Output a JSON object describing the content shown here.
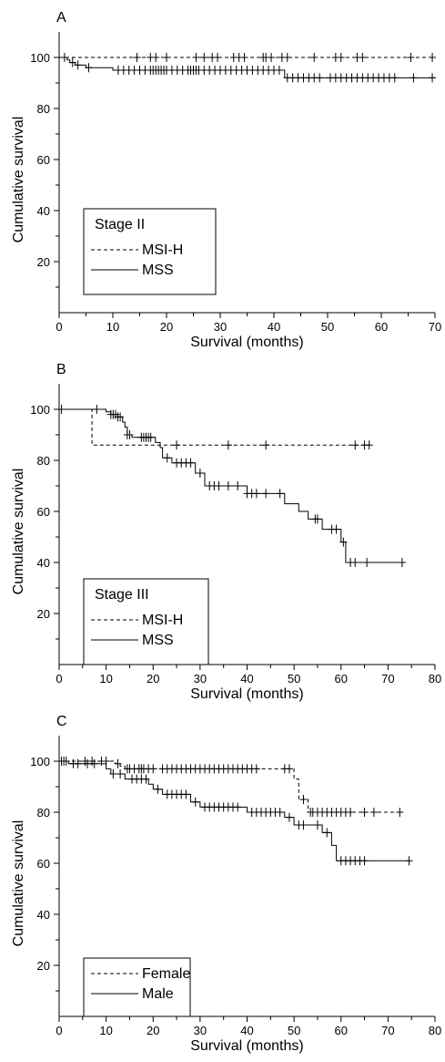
{
  "chart_data": [
    {
      "type": "line",
      "panel_label": "A",
      "xlabel": "Survival (months)",
      "ylabel": "Cumulative survival",
      "xlim": [
        0,
        70
      ],
      "ylim": [
        0,
        110
      ],
      "xticks": [
        0,
        10,
        20,
        30,
        40,
        50,
        60,
        70
      ],
      "yticks": [
        20,
        40,
        60,
        80,
        100
      ],
      "legend": {
        "title": "Stage II",
        "placement": "bottom-left"
      },
      "series": [
        {
          "name": "MSI-H",
          "style": "dashed",
          "steps": [
            [
              0,
              100
            ],
            [
              70,
              100
            ]
          ],
          "censored": [
            1,
            14.5,
            17,
            18,
            20,
            25.5,
            27,
            28.5,
            29.5,
            32.5,
            33.5,
            34.5,
            38,
            38.5,
            39.5,
            41.5,
            42.5,
            47.5,
            51.5,
            52.5,
            55.5,
            56.5,
            65.5,
            69.5
          ]
        },
        {
          "name": "MSS",
          "style": "solid",
          "steps": [
            [
              0,
              100
            ],
            [
              1.5,
              100
            ],
            [
              1.5,
              99
            ],
            [
              2,
              99
            ],
            [
              2,
              98
            ],
            [
              3,
              98
            ],
            [
              3,
              97
            ],
            [
              5,
              97
            ],
            [
              5,
              96
            ],
            [
              10,
              96
            ],
            [
              10,
              95
            ],
            [
              42,
              95
            ],
            [
              42,
              92
            ],
            [
              70,
              92
            ]
          ],
          "censored": [
            2.5,
            3.5,
            5.5,
            11,
            12,
            13,
            14,
            15,
            16,
            17,
            17.5,
            18,
            18.5,
            19,
            19.5,
            20,
            21,
            22,
            23,
            24,
            24.5,
            25,
            25.5,
            26,
            27,
            28,
            29,
            30,
            31,
            32,
            33,
            34,
            35,
            36,
            37,
            38,
            39,
            40,
            41,
            42.5,
            43.5,
            44.5,
            45.5,
            46.5,
            47.5,
            48.5,
            50.5,
            51.5,
            52.5,
            53.5,
            54.5,
            55.5,
            56.5,
            57.5,
            58.5,
            59.5,
            60.5,
            61.5,
            62.5,
            66,
            69.5
          ]
        }
      ]
    },
    {
      "type": "line",
      "panel_label": "B",
      "xlabel": "Survival (months)",
      "ylabel": "Cumulative survival",
      "xlim": [
        0,
        80
      ],
      "ylim": [
        0,
        110
      ],
      "xticks": [
        0,
        10,
        20,
        30,
        40,
        50,
        60,
        70,
        80
      ],
      "yticks": [
        20,
        40,
        60,
        80,
        100
      ],
      "legend": {
        "title": "Stage III",
        "placement": "bottom-left"
      },
      "series": [
        {
          "name": "MSI-H",
          "style": "dashed",
          "steps": [
            [
              0,
              100
            ],
            [
              7,
              100
            ],
            [
              7,
              86
            ],
            [
              66,
              86
            ]
          ],
          "censored": [
            25,
            36,
            44,
            63,
            65,
            66
          ]
        },
        {
          "name": "MSS",
          "style": "solid",
          "steps": [
            [
              0,
              100
            ],
            [
              10,
              100
            ],
            [
              10,
              99
            ],
            [
              11,
              99
            ],
            [
              11,
              98
            ],
            [
              12.5,
              98
            ],
            [
              12.5,
              97
            ],
            [
              13.5,
              97
            ],
            [
              13.5,
              95
            ],
            [
              14,
              95
            ],
            [
              14,
              93
            ],
            [
              14.5,
              93
            ],
            [
              14.5,
              90
            ],
            [
              15.5,
              90
            ],
            [
              15.5,
              89
            ],
            [
              20.5,
              89
            ],
            [
              20.5,
              87
            ],
            [
              21.5,
              87
            ],
            [
              21.5,
              85
            ],
            [
              22,
              85
            ],
            [
              22,
              81
            ],
            [
              24,
              81
            ],
            [
              24,
              79
            ],
            [
              29,
              79
            ],
            [
              29,
              75
            ],
            [
              31,
              75
            ],
            [
              31,
              70
            ],
            [
              40,
              70
            ],
            [
              40,
              67
            ],
            [
              48,
              67
            ],
            [
              48,
              63
            ],
            [
              51,
              63
            ],
            [
              51,
              60
            ],
            [
              53,
              60
            ],
            [
              53,
              57
            ],
            [
              56,
              57
            ],
            [
              56,
              53
            ],
            [
              60,
              53
            ],
            [
              60,
              48
            ],
            [
              61,
              48
            ],
            [
              61,
              40
            ],
            [
              73,
              40
            ]
          ],
          "censored": [
            0.5,
            8,
            11,
            11.5,
            12,
            12.5,
            13,
            14.5,
            15,
            17.5,
            18,
            18.5,
            19,
            19.5,
            23,
            25,
            26,
            27,
            28,
            30,
            32,
            33,
            34,
            36,
            38,
            40,
            41,
            42,
            44,
            47,
            54.5,
            55,
            58,
            59,
            60.5,
            62,
            63,
            65.5,
            73
          ]
        }
      ]
    },
    {
      "type": "line",
      "panel_label": "C",
      "xlabel": "Survival (months)",
      "ylabel": "Cumulative survival",
      "xlim": [
        0,
        80
      ],
      "ylim": [
        0,
        110
      ],
      "xticks": [
        0,
        10,
        20,
        30,
        40,
        50,
        60,
        70,
        80
      ],
      "yticks": [
        20,
        40,
        60,
        80,
        100
      ],
      "legend": {
        "title": "",
        "placement": "bottom-left"
      },
      "series": [
        {
          "name": "Female",
          "style": "dashed",
          "steps": [
            [
              0,
              100
            ],
            [
              12,
              100
            ],
            [
              12,
              99
            ],
            [
              13,
              99
            ],
            [
              13,
              98
            ],
            [
              14,
              98
            ],
            [
              14,
              97
            ],
            [
              50,
              97
            ],
            [
              50,
              93
            ],
            [
              51,
              93
            ],
            [
              51,
              85
            ],
            [
              53,
              85
            ],
            [
              53,
              80
            ],
            [
              73,
              80
            ]
          ],
          "censored": [
            0.5,
            1,
            5.5,
            7,
            9,
            10,
            12.5,
            14.5,
            15,
            16,
            17,
            17.5,
            18,
            19,
            20,
            22,
            23,
            24,
            25,
            26,
            27,
            28,
            29,
            30,
            31,
            32,
            33,
            34,
            35,
            36,
            37,
            38,
            39,
            40,
            41,
            42,
            48,
            49,
            52,
            53.5,
            54,
            55,
            56,
            57,
            58,
            59,
            60,
            61,
            62,
            65,
            67,
            72.5
          ]
        },
        {
          "name": "Male",
          "style": "solid",
          "steps": [
            [
              0,
              100
            ],
            [
              2,
              100
            ],
            [
              2,
              99
            ],
            [
              10,
              99
            ],
            [
              10,
              97
            ],
            [
              11,
              97
            ],
            [
              11,
              95
            ],
            [
              14,
              95
            ],
            [
              14,
              93
            ],
            [
              19,
              93
            ],
            [
              19,
              91
            ],
            [
              20,
              91
            ],
            [
              20,
              89
            ],
            [
              22,
              89
            ],
            [
              22,
              87
            ],
            [
              28,
              87
            ],
            [
              28,
              84
            ],
            [
              30,
              84
            ],
            [
              30,
              82
            ],
            [
              40,
              82
            ],
            [
              40,
              80
            ],
            [
              48,
              80
            ],
            [
              48,
              78
            ],
            [
              50,
              78
            ],
            [
              50,
              75
            ],
            [
              56,
              75
            ],
            [
              56,
              72
            ],
            [
              58,
              72
            ],
            [
              58,
              67
            ],
            [
              59,
              67
            ],
            [
              59,
              61
            ],
            [
              74.5,
              61
            ]
          ],
          "censored": [
            1.5,
            3,
            4,
            6,
            7.5,
            11.5,
            13,
            15.5,
            16.5,
            17.5,
            18.5,
            21,
            23,
            24,
            25,
            26,
            27,
            29,
            31,
            32,
            33,
            34,
            35,
            36,
            37,
            38,
            41,
            42,
            43,
            44,
            45,
            46,
            47,
            49,
            51,
            52,
            55,
            57,
            60,
            61,
            62,
            63,
            64,
            65,
            74.5
          ]
        }
      ]
    }
  ]
}
